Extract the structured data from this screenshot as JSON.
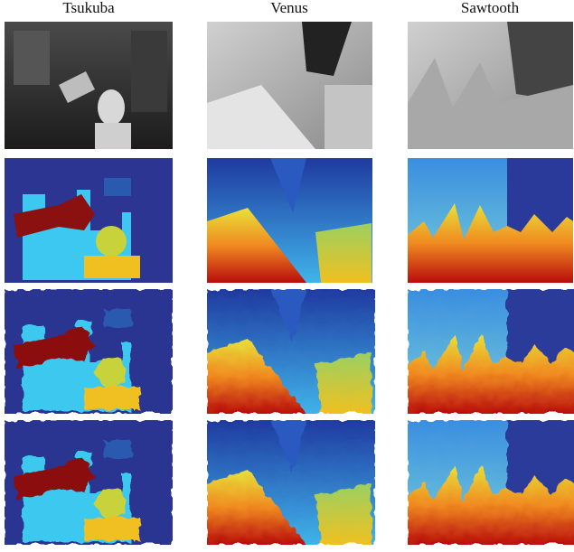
{
  "columns": [
    "Tsukuba",
    "Venus",
    "Sawtooth"
  ]
}
